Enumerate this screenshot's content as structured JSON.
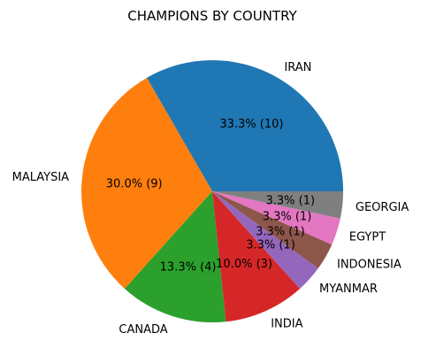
{
  "chart_data": {
    "type": "pie",
    "title": "CHAMPIONS BY COUNTRY",
    "categories": [
      "IRAN",
      "MALAYSIA",
      "CANADA",
      "INDIA",
      "MYANMAR",
      "INDONESIA",
      "EGYPT",
      "GEORGIA"
    ],
    "values": [
      10,
      9,
      4,
      3,
      1,
      1,
      1,
      1
    ],
    "percent_labels": [
      "33.3% (10)",
      "30.0% (9)",
      "13.3% (4)",
      "10.0% (3)",
      "3.3% (1)",
      "3.3% (1)",
      "3.3% (1)",
      "3.3% (1)"
    ],
    "colors": [
      "#1f77b4",
      "#ff7f0e",
      "#2ca02c",
      "#d62728",
      "#9467bd",
      "#8c564b",
      "#e377c2",
      "#7f7f7f"
    ],
    "start_angle": 0,
    "direction": "counterclockwise"
  }
}
